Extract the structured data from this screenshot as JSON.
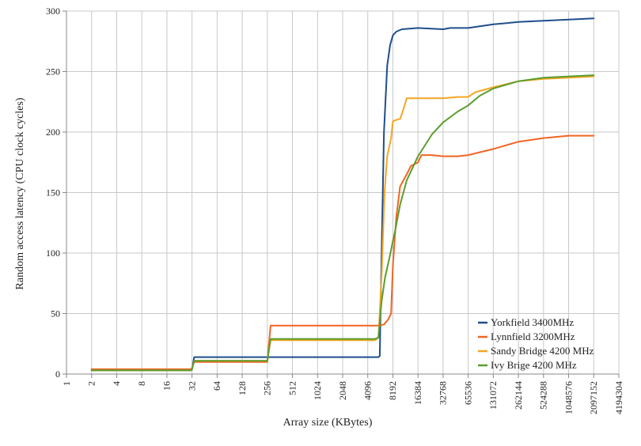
{
  "chart_data": {
    "type": "line",
    "xlabel": "Array size (KBytes)",
    "ylabel": "Random access latency (CPU clock cycles)",
    "x_scale": "log2",
    "x_ticks": [
      "1",
      "2",
      "4",
      "8",
      "16",
      "32",
      "64",
      "128",
      "256",
      "512",
      "1024",
      "2048",
      "4096",
      "8192",
      "16384",
      "32768",
      "65536",
      "131072",
      "262144",
      "524288",
      "1048576",
      "2097152",
      "4194304"
    ],
    "y_ticks": [
      "0",
      "50",
      "100",
      "150",
      "200",
      "250",
      "300"
    ],
    "ylim": [
      0,
      300
    ],
    "xlim": [
      1,
      4194304
    ],
    "grid": true,
    "legend_position": "bottom-right",
    "series": [
      {
        "name": "Yorkfield 3400MHz",
        "color": "#1f4e8c",
        "points": [
          [
            2,
            3
          ],
          [
            24,
            3
          ],
          [
            30,
            3
          ],
          [
            32,
            3.5
          ],
          [
            34,
            14
          ],
          [
            256,
            14
          ],
          [
            4096,
            14
          ],
          [
            5500,
            14
          ],
          [
            5700,
            15
          ],
          [
            6000,
            100
          ],
          [
            6400,
            200
          ],
          [
            7000,
            255
          ],
          [
            7600,
            272
          ],
          [
            8192,
            280
          ],
          [
            9000,
            283
          ],
          [
            10500,
            285
          ],
          [
            16384,
            286
          ],
          [
            32768,
            285
          ],
          [
            40000,
            286
          ],
          [
            65536,
            286
          ],
          [
            131072,
            289
          ],
          [
            262144,
            291
          ],
          [
            524288,
            292
          ],
          [
            1048576,
            293
          ],
          [
            2097152,
            294
          ]
        ]
      },
      {
        "name": "Lynnfield 3200MHz",
        "color": "#f26522",
        "points": [
          [
            2,
            4
          ],
          [
            16,
            4
          ],
          [
            31,
            4
          ],
          [
            32,
            5
          ],
          [
            34,
            10
          ],
          [
            256,
            10
          ],
          [
            280,
            40
          ],
          [
            512,
            40
          ],
          [
            1024,
            40
          ],
          [
            2048,
            40
          ],
          [
            4096,
            40
          ],
          [
            5600,
            40
          ],
          [
            6400,
            41
          ],
          [
            7200,
            45
          ],
          [
            7800,
            50
          ],
          [
            8192,
            90
          ],
          [
            9000,
            130
          ],
          [
            10000,
            155
          ],
          [
            12000,
            165
          ],
          [
            13500,
            172
          ],
          [
            16384,
            175
          ],
          [
            18000,
            181
          ],
          [
            24000,
            181
          ],
          [
            32768,
            180
          ],
          [
            49152,
            180
          ],
          [
            65536,
            181
          ],
          [
            131072,
            186
          ],
          [
            262144,
            192
          ],
          [
            524288,
            195
          ],
          [
            1048576,
            197
          ],
          [
            2097152,
            197
          ]
        ]
      },
      {
        "name": "Sandy Bridge 4200 MHz",
        "color": "#f5a623",
        "points": [
          [
            2,
            3
          ],
          [
            16,
            3
          ],
          [
            31,
            3
          ],
          [
            32,
            4
          ],
          [
            34,
            11
          ],
          [
            256,
            11
          ],
          [
            280,
            28
          ],
          [
            512,
            28
          ],
          [
            4096,
            28
          ],
          [
            5000,
            28
          ],
          [
            5500,
            30
          ],
          [
            6000,
            80
          ],
          [
            6500,
            150
          ],
          [
            7000,
            180
          ],
          [
            7800,
            195
          ],
          [
            8192,
            209
          ],
          [
            9000,
            210
          ],
          [
            10000,
            211
          ],
          [
            11000,
            219
          ],
          [
            12000,
            228
          ],
          [
            16384,
            228
          ],
          [
            32768,
            228
          ],
          [
            49152,
            229
          ],
          [
            65536,
            229
          ],
          [
            80000,
            233
          ],
          [
            131072,
            237
          ],
          [
            262144,
            242
          ],
          [
            524288,
            244
          ],
          [
            1048576,
            245
          ],
          [
            2097152,
            246
          ]
        ]
      },
      {
        "name": "Ivy Brige 4200 MHz",
        "color": "#5a9e2f",
        "points": [
          [
            2,
            3
          ],
          [
            16,
            3
          ],
          [
            31,
            3
          ],
          [
            32,
            4
          ],
          [
            34,
            11
          ],
          [
            256,
            11
          ],
          [
            280,
            29
          ],
          [
            512,
            29
          ],
          [
            4096,
            29
          ],
          [
            5000,
            29
          ],
          [
            5500,
            30
          ],
          [
            6000,
            60
          ],
          [
            6600,
            80
          ],
          [
            7400,
            95
          ],
          [
            8192,
            110
          ],
          [
            8700,
            118
          ],
          [
            10000,
            140
          ],
          [
            12000,
            160
          ],
          [
            16384,
            180
          ],
          [
            24000,
            198
          ],
          [
            32768,
            208
          ],
          [
            49152,
            217
          ],
          [
            65536,
            222
          ],
          [
            90000,
            230
          ],
          [
            131072,
            236
          ],
          [
            262144,
            242
          ],
          [
            524288,
            245
          ],
          [
            1048576,
            246
          ],
          [
            2097152,
            247
          ]
        ]
      }
    ]
  }
}
